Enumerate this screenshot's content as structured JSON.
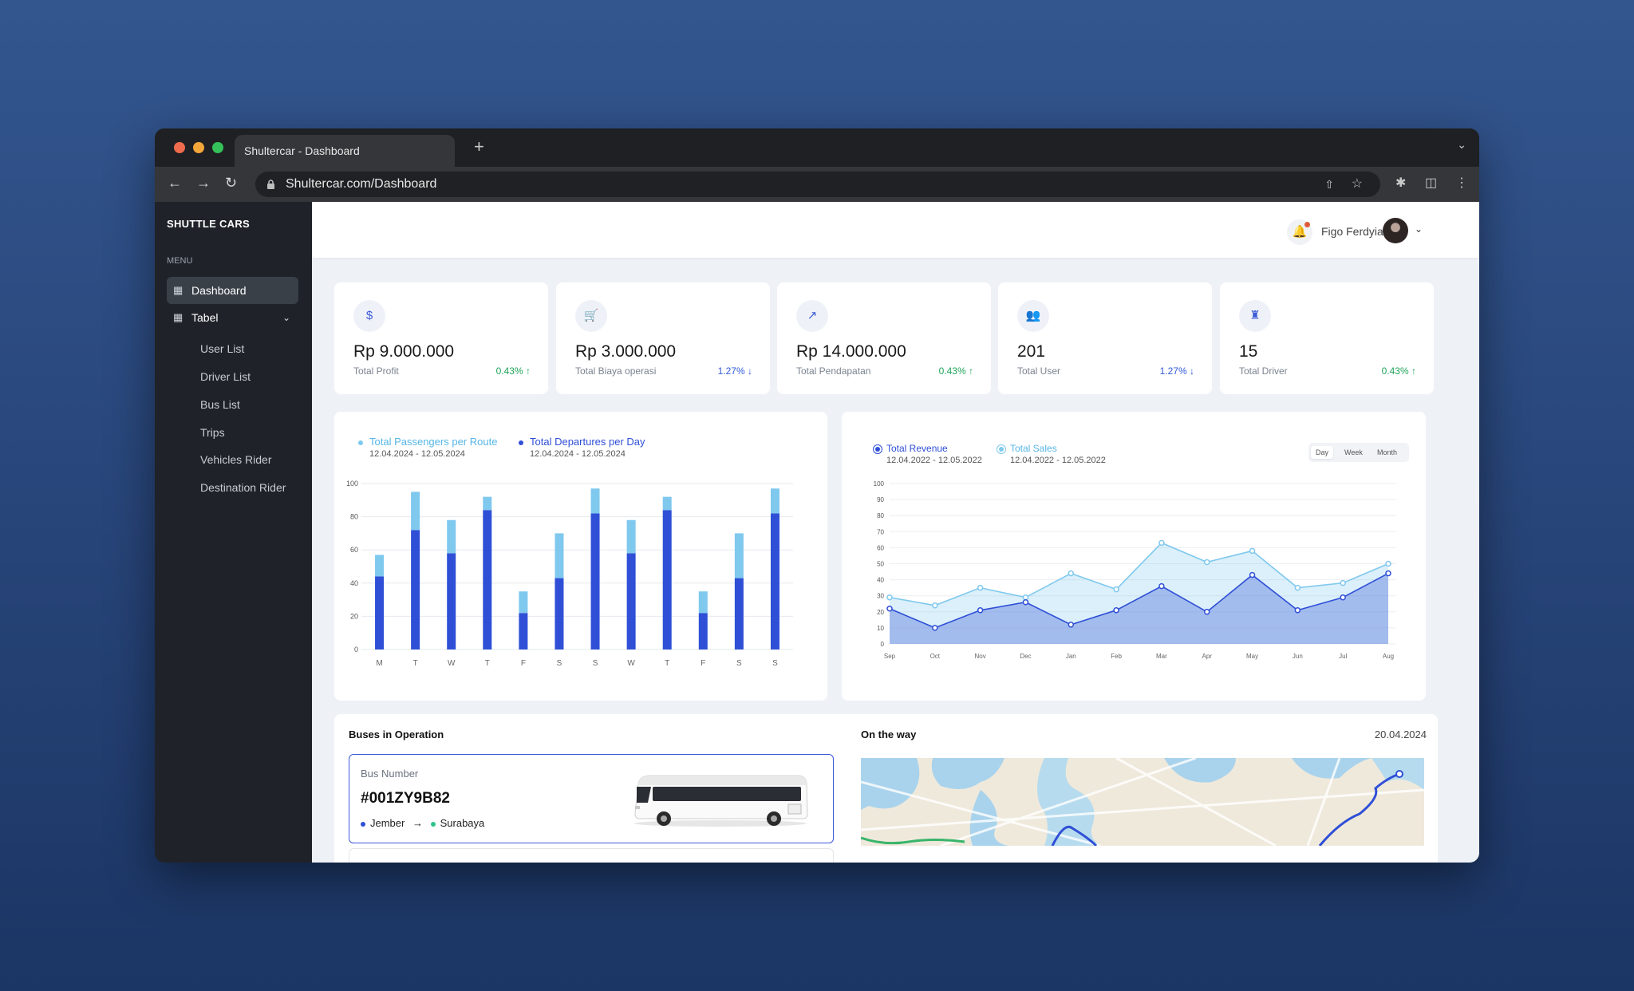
{
  "browser": {
    "tab_title": "Shultercar - Dashboard",
    "new_tab": "+",
    "url": "Shultercar.com/Dashboard",
    "traffic_lights": [
      "#ee6b4d",
      "#f3a73b",
      "#34c15a"
    ]
  },
  "sidebar": {
    "brand": "SHUTTLE CARS",
    "menu_label": "MENU",
    "items": [
      {
        "label": "Dashboard",
        "icon": "grid-icon",
        "active": true
      },
      {
        "label": "Tabel",
        "icon": "table-icon",
        "expanded": true
      }
    ],
    "subitems": [
      "User List",
      "Driver List",
      "Bus List",
      "Trips",
      "Vehicles Rider",
      "Destination Rider"
    ]
  },
  "header": {
    "user_name": "Figo Ferdyian",
    "has_notification": true
  },
  "stats": [
    {
      "value": "Rp 9.000.000",
      "label": "Total Profit",
      "change": "0.43%",
      "trend": "up",
      "icon": "dollar-icon"
    },
    {
      "value": "Rp 3.000.000",
      "label": "Total Biaya operasi",
      "change": "1.27%",
      "trend": "down",
      "icon": "cart-icon"
    },
    {
      "value": "Rp 14.000.000",
      "label": "Total Pendapatan",
      "change": "0.43%",
      "trend": "up",
      "icon": "trend-up-icon"
    },
    {
      "value": "201",
      "label": "Total User",
      "change": "1.27%",
      "trend": "down",
      "icon": "users-icon"
    },
    {
      "value": "15",
      "label": "Total Driver",
      "change": "0.43%",
      "trend": "up",
      "icon": "driver-icon"
    }
  ],
  "bar_panel": {
    "legend": [
      {
        "name": "Total Passengers per Route",
        "date_range": "12.04.2024 - 12.05.2024",
        "color": "#7fc8ee"
      },
      {
        "name": "Total Departures per Day",
        "date_range": "12.04.2024 - 12.05.2024",
        "color": "#2f4fd6"
      }
    ]
  },
  "line_panel": {
    "legend": [
      {
        "name": "Total Revenue",
        "date_range": "12.04.2022 - 12.05.2022",
        "color": "#2f4fd6"
      },
      {
        "name": "Total Sales",
        "date_range": "12.04.2022 - 12.05.2022",
        "color": "#7fc8ee"
      }
    ],
    "segments": [
      "Day",
      "Week",
      "Month"
    ],
    "active_segment": "Day"
  },
  "chart_data": [
    {
      "type": "bar",
      "stacked": true,
      "categories": [
        "M",
        "T",
        "W",
        "T",
        "F",
        "S",
        "S",
        "W",
        "T",
        "F",
        "S",
        "S"
      ],
      "yticks": [
        "0",
        "20",
        "40",
        "60",
        "80",
        "100"
      ],
      "ylim": [
        0,
        100
      ],
      "grid": true,
      "series": [
        {
          "name": "Total Departures per Day",
          "values": [
            44,
            72,
            58,
            84,
            22,
            43,
            82,
            58,
            84,
            22,
            43,
            82
          ],
          "color": "#2f4fd6"
        },
        {
          "name": "Total Passengers per Route",
          "values": [
            13,
            23,
            20,
            8,
            13,
            27,
            15,
            20,
            8,
            13,
            27,
            15
          ],
          "color": "#7fc8ee"
        }
      ]
    },
    {
      "type": "area",
      "x": [
        "Sep",
        "Oct",
        "Nov",
        "Dec",
        "Jan",
        "Feb",
        "Mar",
        "Apr",
        "May",
        "Jun",
        "Jul",
        "Aug"
      ],
      "yticks": [
        "0",
        "10",
        "20",
        "30",
        "40",
        "50",
        "60",
        "70",
        "80",
        "90",
        "100"
      ],
      "ylim": [
        0,
        100
      ],
      "grid": true,
      "series": [
        {
          "name": "Total Sales",
          "values": [
            29,
            24,
            35,
            29,
            44,
            34,
            63,
            51,
            58,
            35,
            38,
            50
          ],
          "color": "#7fc8ee"
        },
        {
          "name": "Total Revenue",
          "values": [
            22,
            10,
            21,
            26,
            12,
            21,
            36,
            20,
            43,
            21,
            29,
            44
          ],
          "color": "#2f4fd6"
        }
      ]
    }
  ],
  "buses": {
    "title": "Buses in Operation",
    "items": [
      {
        "label": "Bus Number",
        "number": "#001ZY9B82",
        "from": "Jember",
        "to": "Surabaya"
      }
    ]
  },
  "map_panel": {
    "title": "On the way",
    "date": "20.04.2024"
  }
}
